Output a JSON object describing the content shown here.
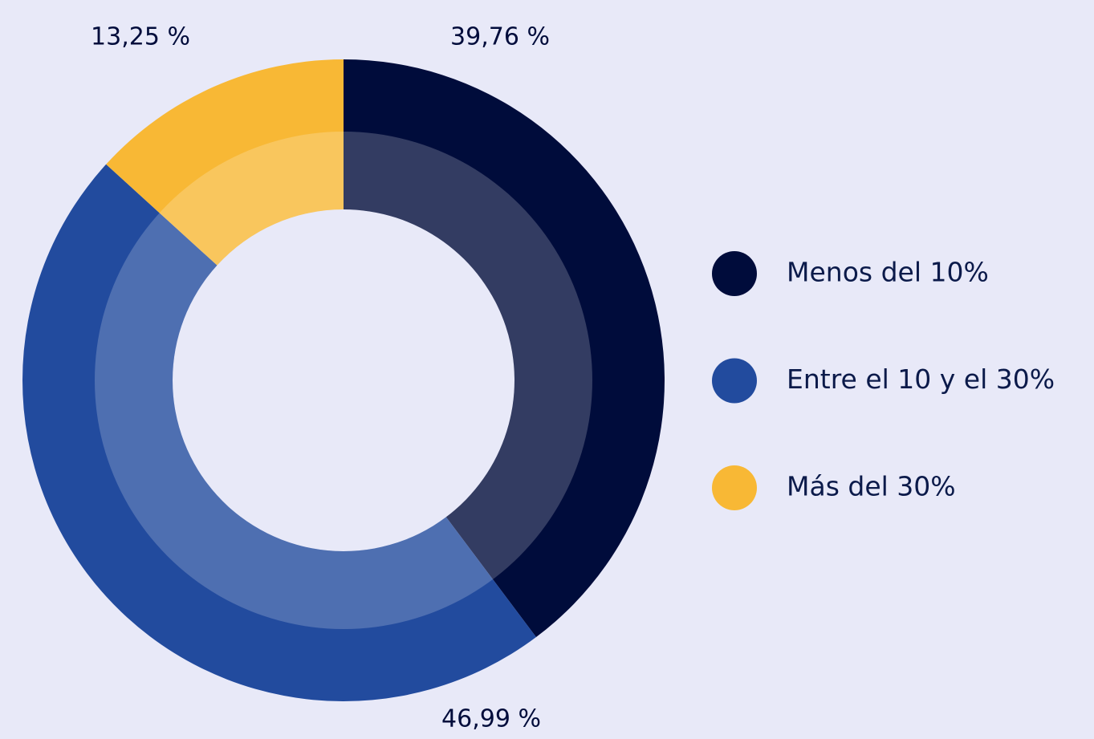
{
  "chart_data": {
    "type": "donut",
    "categories": [
      "Menos del 10%",
      "Entre el 10 y el 30%",
      "Más del 30%"
    ],
    "values": [
      39.76,
      46.99,
      13.25
    ],
    "value_labels": [
      "39,76 %",
      "46,99 %",
      "13,25 %"
    ],
    "colors": [
      "#000c3b",
      "#224b9e",
      "#f8b835"
    ],
    "legend": "right"
  }
}
